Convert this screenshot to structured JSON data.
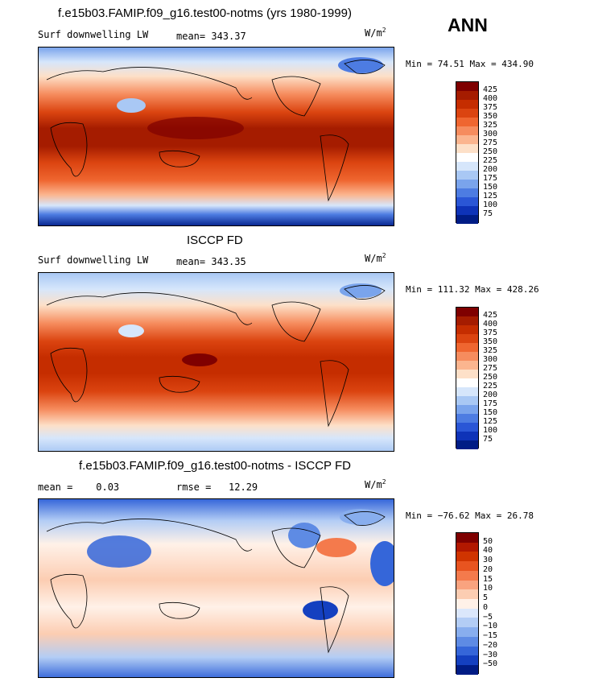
{
  "season": "ANN",
  "units_base": "W/m",
  "units_exp": "2",
  "panels": [
    {
      "title": "f.e15b03.FAMIP.f09_g16.test00-notms (yrs 1980-1999)",
      "left_label": "Surf downwelling LW",
      "stat1": "mean= 343.37",
      "stat2": "",
      "minmax": "Min =  74.51 Max = 434.90",
      "colorbar": {
        "labels": [
          "425",
          "400",
          "375",
          "350",
          "325",
          "300",
          "275",
          "250",
          "225",
          "200",
          "175",
          "150",
          "125",
          "100",
          "75"
        ],
        "colors": [
          "#7f0000",
          "#a51c00",
          "#c52d00",
          "#db4410",
          "#ef6630",
          "#f68c5e",
          "#fbb58f",
          "#fde0c8",
          "#ffffff",
          "#d6e6fb",
          "#a9c8f4",
          "#7aa4ec",
          "#4d7ce2",
          "#2a56d6",
          "#0e33b8",
          "#001c85"
        ]
      }
    },
    {
      "title": "ISCCP FD",
      "left_label": "Surf downwelling LW",
      "stat1": "mean= 343.35",
      "stat2": "",
      "minmax": "Min = 111.32 Max = 428.26",
      "colorbar": {
        "labels": [
          "425",
          "400",
          "375",
          "350",
          "325",
          "300",
          "275",
          "250",
          "225",
          "200",
          "175",
          "150",
          "125",
          "100",
          "75"
        ],
        "colors": [
          "#7f0000",
          "#a51c00",
          "#c52d00",
          "#db4410",
          "#ef6630",
          "#f68c5e",
          "#fbb58f",
          "#fde0c8",
          "#ffffff",
          "#d6e6fb",
          "#a9c8f4",
          "#7aa4ec",
          "#4d7ce2",
          "#2a56d6",
          "#0e33b8",
          "#001c85"
        ]
      }
    },
    {
      "title": "f.e15b03.FAMIP.f09_g16.test00-notms - ISCCP FD",
      "left_label": "mean =    0.03",
      "stat1": "rmse =   12.29",
      "stat2": "",
      "minmax": "Min = −76.62 Max =  26.78",
      "colorbar": {
        "labels": [
          "50",
          "40",
          "30",
          "20",
          "15",
          "10",
          "5",
          "0",
          "−5",
          "−10",
          "−15",
          "−20",
          "−30",
          "−50"
        ],
        "colors": [
          "#7f0000",
          "#b21800",
          "#d03400",
          "#e85420",
          "#f47a4c",
          "#f9a37f",
          "#fccdb2",
          "#fff1e8",
          "#dbe7fb",
          "#b3cdf5",
          "#88aeee",
          "#5e8be4",
          "#3566d9",
          "#1440c0",
          "#001c85"
        ]
      }
    }
  ],
  "colors": {
    "land_line": "#000000",
    "map_frame": "#000000"
  }
}
